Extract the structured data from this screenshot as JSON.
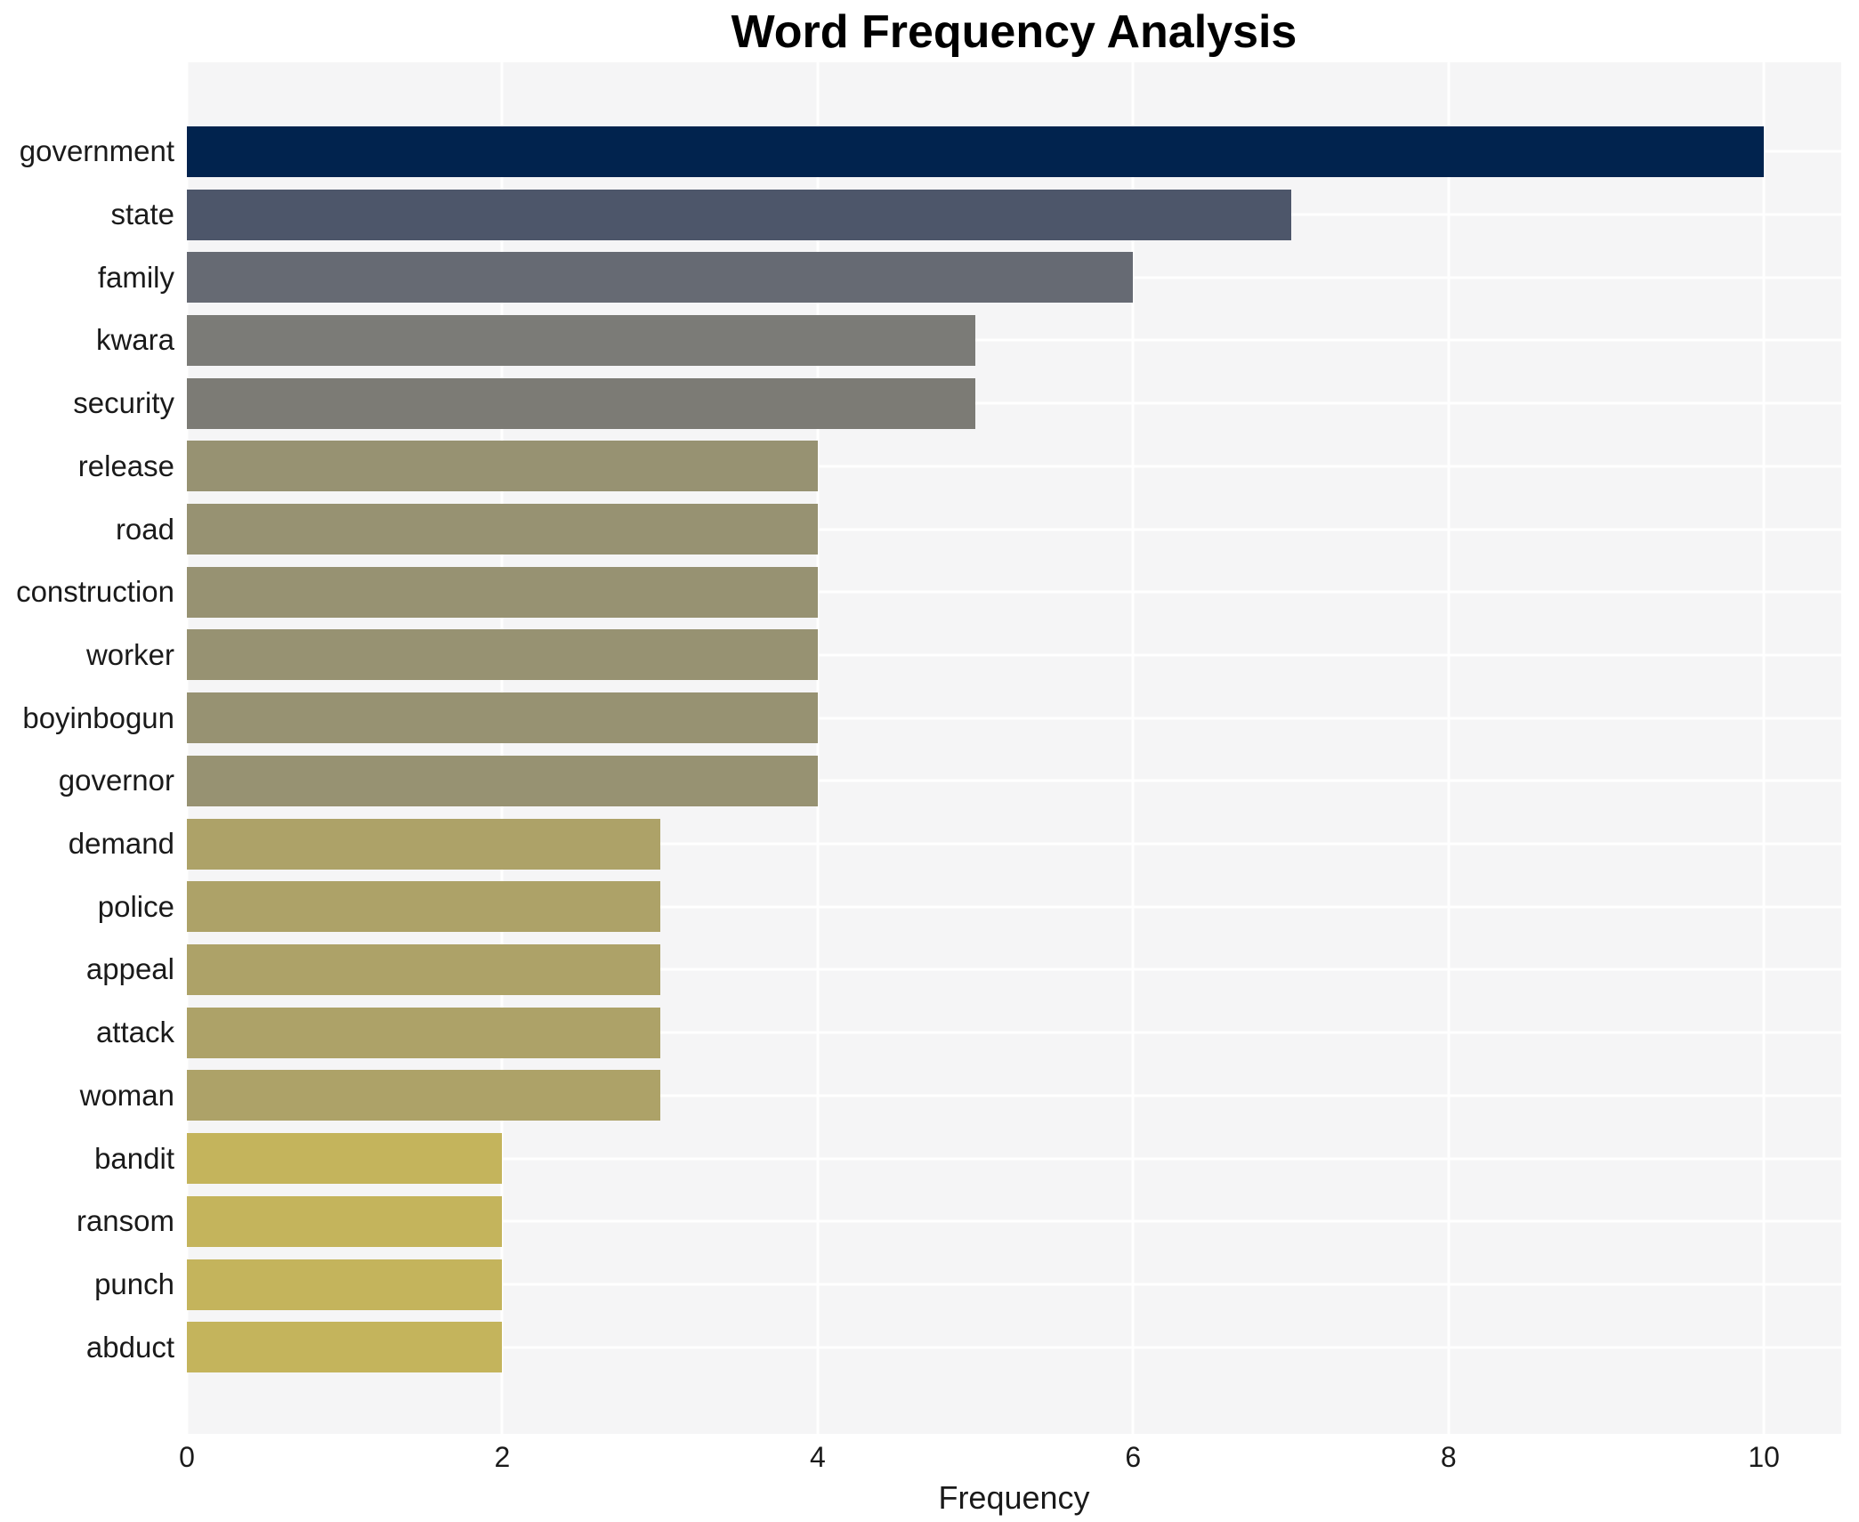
{
  "figure": {
    "background": "#ffffff"
  },
  "chart_data": {
    "type": "bar",
    "orientation": "horizontal",
    "title": "Word Frequency Analysis",
    "xlabel": "Frequency",
    "ylabel": "",
    "categories": [
      "government",
      "state",
      "family",
      "kwara",
      "security",
      "release",
      "road",
      "construction",
      "worker",
      "boyinbogun",
      "governor",
      "demand",
      "police",
      "appeal",
      "attack",
      "woman",
      "bandit",
      "ransom",
      "punch",
      "abduct"
    ],
    "values": [
      10,
      7,
      6,
      5,
      5,
      4,
      4,
      4,
      4,
      4,
      4,
      3,
      3,
      3,
      3,
      3,
      2,
      2,
      2,
      2
    ],
    "bar_colors": [
      "#01234e",
      "#4d566a",
      "#666a73",
      "#7b7b77",
      "#7c7b75",
      "#979272",
      "#979272",
      "#979272",
      "#979272",
      "#979272",
      "#979272",
      "#ada268",
      "#ada268",
      "#ada268",
      "#ada268",
      "#ada268",
      "#c4b45c",
      "#c4b45c",
      "#c4b45c",
      "#c4b45c"
    ],
    "xticks": [
      0,
      2,
      4,
      6,
      8,
      10
    ],
    "xlim": [
      0,
      10.49
    ],
    "grid": true,
    "legend": false,
    "plot_background": "#f5f5f6",
    "gridline_color": "#ffffff",
    "text_color": "#1a1a1a",
    "title_color": "#000000"
  }
}
